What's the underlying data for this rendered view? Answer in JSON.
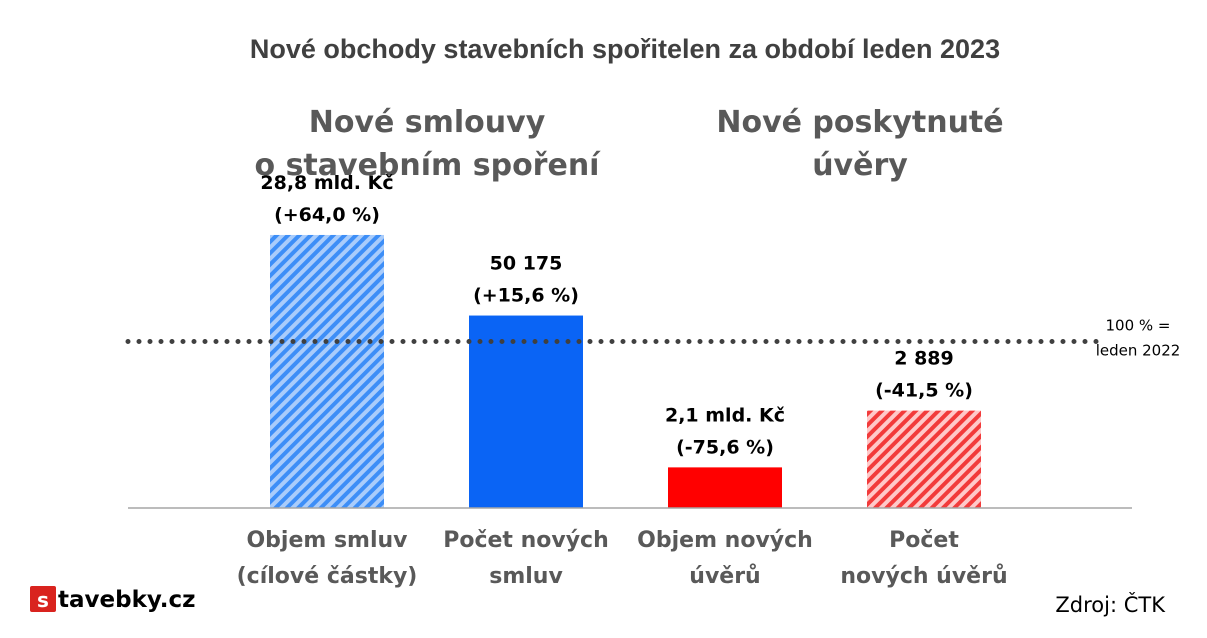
{
  "chart_data": {
    "type": "bar",
    "title": "Nové obchody stavebních spořitelen za období leden 2023",
    "groups": [
      {
        "lines": [
          "Nové smlouvy",
          "o stavebním spoření"
        ]
      },
      {
        "lines": [
          "Nové poskytnuté",
          "úvěry"
        ]
      }
    ],
    "categories": [
      [
        "Objem smluv",
        "(cílové částky)"
      ],
      [
        "Počet  nových",
        "smluv"
      ],
      [
        "Objem nových",
        "úvěrů"
      ],
      [
        "Počet",
        "nových úvěrů"
      ]
    ],
    "values": [
      164.0,
      115.6,
      24.4,
      58.5
    ],
    "data_labels": [
      [
        "28,8 mld. Kč",
        "(+64,0 %)"
      ],
      [
        "50 175",
        "(+15,6 %)"
      ],
      [
        "2,1 mld. Kč",
        "(-75,6 %)"
      ],
      [
        "2 889",
        "(-41,5 %)"
      ]
    ],
    "bar_colors": [
      "#3D8EF7",
      "#0A64F5",
      "#FF0000",
      "#F23B3B"
    ],
    "bar_hatched": [
      true,
      false,
      false,
      true
    ],
    "reference_line": {
      "value": 100,
      "lines": [
        "100 % =",
        "leden 2022"
      ]
    },
    "ylim": [
      0,
      185
    ],
    "xlabel": "",
    "ylabel": "",
    "grid": false
  },
  "source": "Zdroj: ČTK",
  "logo": {
    "badge": "s",
    "text": "tavebky.cz",
    "badge_color": "#D9231E"
  }
}
